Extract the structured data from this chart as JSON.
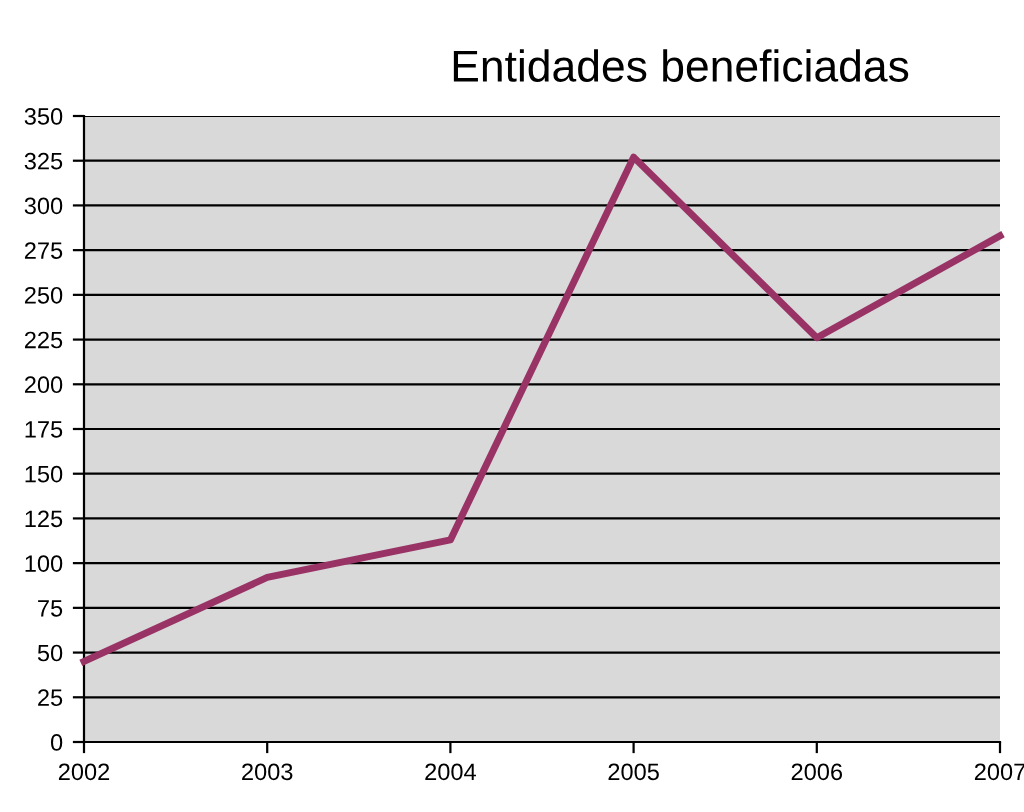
{
  "chart_data": {
    "type": "line",
    "title": "Entidades beneficiadas",
    "x": [
      2002,
      2003,
      2004,
      2005,
      2006,
      2007
    ],
    "series": [
      {
        "color": "#993366",
        "values": [
          45,
          92,
          113,
          327,
          226,
          283
        ]
      }
    ],
    "xlim": [
      2002,
      2007
    ],
    "xticks": [
      2002,
      2003,
      2004,
      2005,
      2006,
      2007
    ],
    "ylim": [
      0,
      350
    ],
    "yticks": [
      0,
      25,
      50,
      75,
      100,
      125,
      150,
      175,
      200,
      225,
      250,
      275,
      300,
      325,
      350
    ],
    "grid": "y",
    "legend": false,
    "marker": "none",
    "line_style": "solid"
  }
}
